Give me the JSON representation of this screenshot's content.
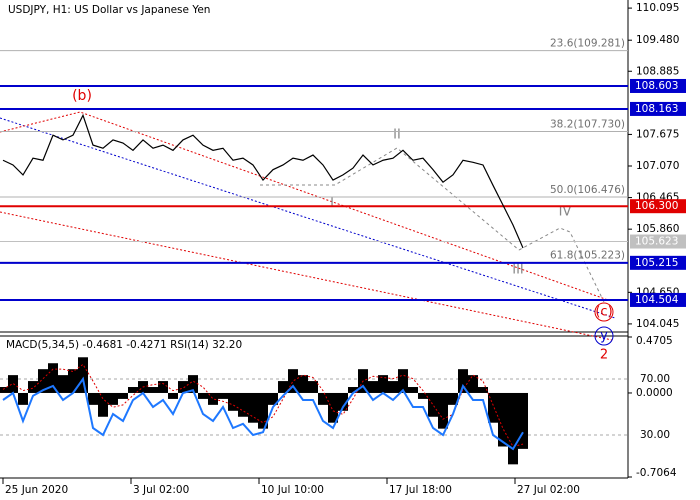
{
  "chart_data": [
    {
      "type": "line",
      "title": "USDJPY, H1:  US Dollar vs Japanese Yen",
      "x": [
        0,
        10,
        20,
        30,
        40,
        50,
        60,
        70,
        80,
        90,
        100,
        110,
        120,
        130,
        140,
        150,
        160,
        170,
        180,
        190,
        200,
        210,
        220,
        230,
        240,
        250,
        260,
        270,
        280,
        290,
        300,
        310,
        320,
        330,
        340,
        350,
        360,
        370,
        380,
        390,
        400,
        410,
        420,
        430,
        440,
        450,
        460,
        470,
        480,
        490,
        500,
        510,
        520
      ],
      "series": [
        {
          "color": "#000000",
          "values": [
            107.18,
            107.09,
            106.9,
            107.22,
            107.18,
            107.66,
            107.57,
            107.66,
            108.04,
            107.47,
            107.41,
            107.57,
            107.51,
            107.37,
            107.57,
            107.41,
            107.47,
            107.37,
            107.57,
            107.66,
            107.47,
            107.37,
            107.41,
            107.18,
            107.22,
            107.09,
            106.8,
            107.0,
            107.09,
            107.22,
            107.18,
            107.28,
            107.09,
            106.8,
            106.9,
            107.03,
            107.28,
            107.09,
            107.18,
            107.22,
            107.37,
            107.18,
            107.22,
            107.0,
            106.76,
            106.9,
            107.18,
            107.14,
            107.09,
            106.7,
            106.32,
            105.94,
            105.5
          ]
        }
      ],
      "xlim": [
        -3,
        625
      ],
      "xticks": [
        {
          "value": 0,
          "label": "25 Jun 2020"
        },
        {
          "value": 128,
          "label": "3 Jul 02:00"
        },
        {
          "value": 256,
          "label": "10 Jul 10:00"
        },
        {
          "value": 384,
          "label": "17 Jul 18:00"
        },
        {
          "value": 512,
          "label": "27 Jul 02:00"
        }
      ],
      "ylim": [
        103.89,
        110.25
      ],
      "yticks": [
        110.095,
        {
          "value": 109.48,
          "label": "109.480"
        },
        108.885,
        107.675,
        {
          "value": 107.07,
          "label": "107.070"
        },
        106.465,
        {
          "value": 105.86,
          "label": "105.860"
        },
        {
          "value": 104.65,
          "label": "104.650"
        },
        104.045
      ],
      "levels": [
        {
          "value": 108.603,
          "color": "#0000cc"
        },
        {
          "value": 108.163,
          "color": "#0000cc"
        },
        {
          "value": 106.3,
          "label": "106.300",
          "color": "#e00000"
        },
        {
          "value": 105.623,
          "color": "#c0c0c0"
        },
        {
          "value": 105.215,
          "color": "#0000cc"
        },
        {
          "value": 104.504,
          "color": "#0000cc"
        }
      ],
      "fibonacci": [
        {
          "value": 109.281,
          "label": "23.6(109.281)"
        },
        {
          "value": 107.73,
          "label": "38.2(107.730)"
        },
        {
          "value": 106.476,
          "label": "50.0(106.476)"
        },
        {
          "value": 105.223,
          "label": "61.8(105.223)"
        }
      ],
      "annotations": [
        "(b)",
        "II",
        "I",
        "III",
        "IV",
        "(c)",
        "y",
        "2"
      ]
    },
    {
      "type": "macd",
      "title": "MACD(5,34,5) -0.4681 -0.4271 RSI(14) 32.20",
      "x": [
        0,
        10,
        20,
        30,
        40,
        50,
        60,
        70,
        80,
        90,
        100,
        110,
        120,
        130,
        140,
        150,
        160,
        170,
        180,
        190,
        200,
        210,
        220,
        230,
        240,
        250,
        260,
        270,
        280,
        290,
        300,
        310,
        320,
        330,
        340,
        350,
        360,
        370,
        380,
        390,
        400,
        410,
        420,
        430,
        440,
        450,
        460,
        470,
        480,
        490,
        500,
        510,
        520
      ],
      "series": [
        {
          "kind": "histogram",
          "color": "#000000",
          "values": [
            0.05,
            0.15,
            -0.1,
            0.1,
            0.2,
            0.25,
            0.15,
            0.2,
            0.3,
            -0.1,
            -0.2,
            -0.1,
            -0.05,
            0.05,
            0.1,
            0.05,
            0.1,
            -0.05,
            0.1,
            0.15,
            -0.05,
            -0.1,
            -0.05,
            -0.15,
            -0.2,
            -0.25,
            -0.3,
            -0.1,
            0.1,
            0.2,
            0.15,
            0.1,
            -0.1,
            -0.25,
            -0.15,
            0.05,
            0.2,
            0.1,
            0.15,
            0.1,
            0.2,
            0.05,
            -0.05,
            -0.2,
            -0.3,
            -0.1,
            0.2,
            0.15,
            0.05,
            -0.25,
            -0.45,
            -0.6,
            -0.47
          ]
        },
        {
          "kind": "signal",
          "color": "#e00000",
          "values": [
            0.03,
            0.08,
            0.02,
            0.04,
            0.12,
            0.2,
            0.2,
            0.18,
            0.24,
            0.1,
            -0.05,
            -0.12,
            -0.1,
            -0.02,
            0.05,
            0.07,
            0.08,
            0.02,
            0.04,
            0.1,
            0.05,
            -0.05,
            -0.07,
            -0.1,
            -0.15,
            -0.2,
            -0.25,
            -0.2,
            -0.05,
            0.1,
            0.15,
            0.13,
            0.02,
            -0.15,
            -0.18,
            -0.05,
            0.1,
            0.14,
            0.13,
            0.12,
            0.15,
            0.12,
            0.02,
            -0.1,
            -0.22,
            -0.18,
            0.03,
            0.15,
            0.1,
            -0.1,
            -0.3,
            -0.45,
            -0.43
          ]
        },
        {
          "kind": "rsi",
          "color": "#1e78ff",
          "axis": "y2",
          "values": [
            55,
            60,
            40,
            58,
            62,
            65,
            55,
            60,
            70,
            35,
            30,
            45,
            40,
            55,
            60,
            50,
            55,
            45,
            60,
            62,
            45,
            40,
            50,
            35,
            38,
            30,
            32,
            50,
            58,
            65,
            55,
            55,
            40,
            35,
            50,
            60,
            65,
            55,
            60,
            55,
            62,
            50,
            50,
            35,
            30,
            45,
            65,
            55,
            55,
            30,
            25,
            20,
            32
          ]
        }
      ],
      "xlim": [
        -3,
        625
      ],
      "ylim": [
        -0.7064,
        0.4705
      ],
      "yticks": [
        0.4705,
        {
          "value": 0,
          "label": "0.0000"
        },
        -0.7064
      ],
      "y2lim": [
        0,
        100
      ],
      "y2ticks": [
        {
          "value": 70,
          "label": "70.00"
        },
        {
          "value": 30,
          "label": "30.00"
        }
      ]
    }
  ]
}
